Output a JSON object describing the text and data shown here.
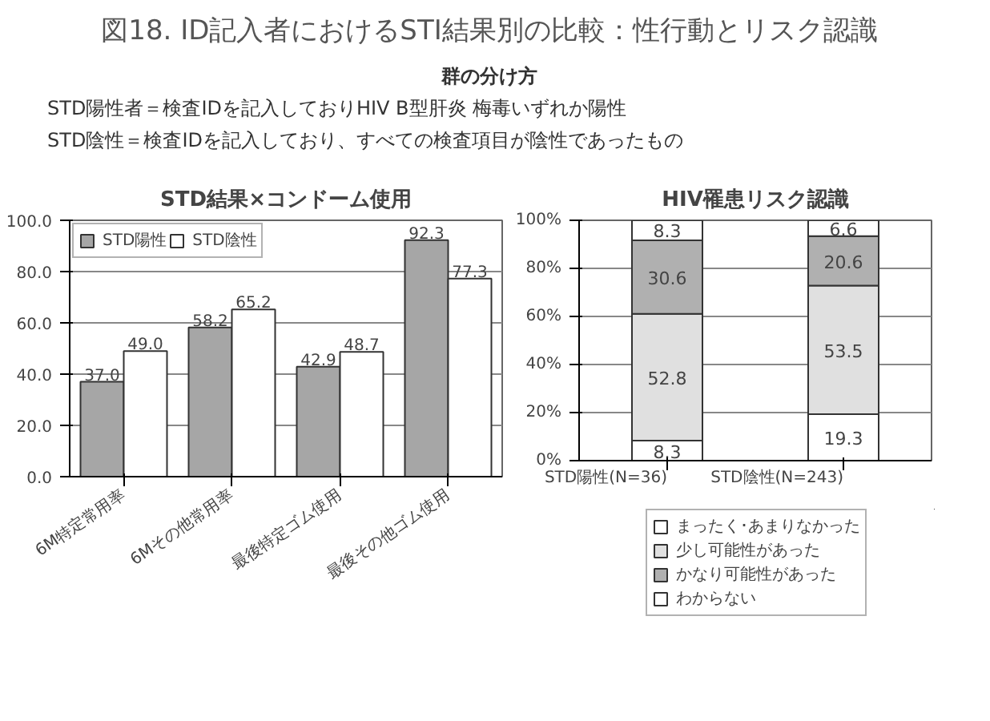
{
  "chart_data": [
    {
      "type": "other",
      "title": "図18. ID記入者におけるSTI結果別の比較：性行動とリスク認識",
      "annotations": [
        "群の分け方",
        "STD陽性者＝検査IDを記入しておりHIV  B型肝炎  梅毒いずれか陽性",
        "STD陰性＝検査IDを記入しており、すべての検査項目が陰性であったもの"
      ]
    },
    {
      "type": "bar",
      "title": "STD結果×コンドーム使用",
      "categories": [
        "6M特定常用率",
        "6Mその他常用率",
        "最後特定ゴム使用",
        "最後その他ゴム使用"
      ],
      "series": [
        {
          "name": "STD陽性",
          "color": "#a6a6a6",
          "values": [
            37.0,
            58.2,
            42.9,
            92.3
          ],
          "value_labels": [
            "37.0",
            "58.2",
            "42.9",
            "92.3"
          ]
        },
        {
          "name": "STD陰性",
          "color": "#ffffff",
          "values": [
            49.0,
            65.2,
            48.7,
            77.3
          ],
          "value_labels": [
            "49.0",
            "65.2",
            "48.7",
            "77.3"
          ]
        }
      ],
      "ylim": [
        0,
        100
      ],
      "yticks": [
        {
          "value": 0,
          "label": "0.0"
        },
        {
          "value": 20,
          "label": "20.0"
        },
        {
          "value": 40,
          "label": "40.0"
        },
        {
          "value": 60,
          "label": "60.0"
        },
        {
          "value": 80,
          "label": "80.0"
        },
        {
          "value": 100,
          "label": "100.0"
        }
      ],
      "grid": "y",
      "legend": "top left",
      "data_labels": true
    },
    {
      "type": "bar",
      "title": "HIV罹患リスク認識",
      "stacked": true,
      "categories": [
        "STD陽性(N=36)",
        "STD陰性(N=243)"
      ],
      "series": [
        {
          "name": "まったく･あまりなかった",
          "color": "#ffffff",
          "values": [
            8.3,
            19.3
          ]
        },
        {
          "name": "少し可能性があった",
          "color": "#e0e0e0",
          "values": [
            52.8,
            53.5
          ]
        },
        {
          "name": "かなり可能性があった",
          "color": "#b0b0b0",
          "values": [
            30.6,
            20.6
          ]
        },
        {
          "name": "わからない",
          "color": "#ffffff",
          "values": [
            8.3,
            6.6
          ]
        }
      ],
      "ylim": [
        0,
        100
      ],
      "yticks": [
        {
          "value": 0,
          "label": "0%"
        },
        {
          "value": 20,
          "label": "20%"
        },
        {
          "value": 40,
          "label": "40%"
        },
        {
          "value": 60,
          "label": "60%"
        },
        {
          "value": 80,
          "label": "80%"
        },
        {
          "value": 100,
          "label": "100%"
        }
      ],
      "grid": "y",
      "legend": "bottom",
      "data_labels": true
    }
  ]
}
